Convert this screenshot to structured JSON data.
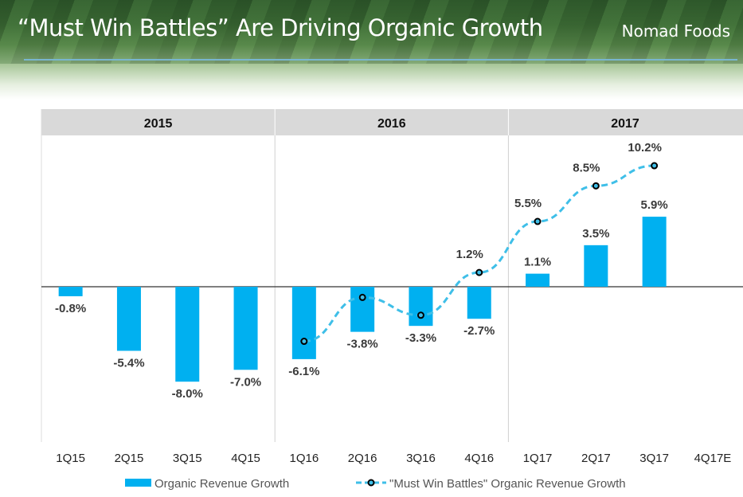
{
  "header": {
    "title": "“Must Win Battles” Are Driving Organic Growth",
    "brand": "Nomad Foods"
  },
  "colors": {
    "bar": "#00b0f0",
    "line": "#3fbfe8",
    "marker_edge": "#000000",
    "year_band": "#d9d9d9"
  },
  "chart_data": {
    "type": "bar",
    "years": [
      "2015",
      "2016",
      "2017"
    ],
    "categories": [
      "1Q15",
      "2Q15",
      "3Q15",
      "4Q15",
      "1Q16",
      "2Q16",
      "3Q16",
      "4Q16",
      "1Q17",
      "2Q17",
      "3Q17",
      "4Q17E"
    ],
    "series": [
      {
        "name": "Organic Revenue Growth",
        "type": "bar",
        "values": [
          -0.8,
          -5.4,
          -8.0,
          -7.0,
          -6.1,
          -3.8,
          -3.3,
          -2.7,
          1.1,
          3.5,
          5.9,
          null
        ],
        "labels": [
          "-0.8%",
          "-5.4%",
          "-8.0%",
          "-7.0%",
          "-6.1%",
          "-3.8%",
          "-3.3%",
          "-2.7%",
          "1.1%",
          "3.5%",
          "5.9%",
          ""
        ]
      },
      {
        "name": "\"Must Win Battles\" Organic Revenue Growth",
        "type": "line",
        "values": [
          null,
          null,
          null,
          null,
          -4.6,
          -0.9,
          -2.4,
          1.2,
          5.5,
          8.5,
          10.2,
          null
        ],
        "labels": [
          "",
          "",
          "",
          "",
          "",
          "",
          "",
          "1.2%",
          "5.5%",
          "8.5%",
          "10.2%",
          ""
        ]
      }
    ],
    "unit": "%",
    "legend": "bottom"
  }
}
